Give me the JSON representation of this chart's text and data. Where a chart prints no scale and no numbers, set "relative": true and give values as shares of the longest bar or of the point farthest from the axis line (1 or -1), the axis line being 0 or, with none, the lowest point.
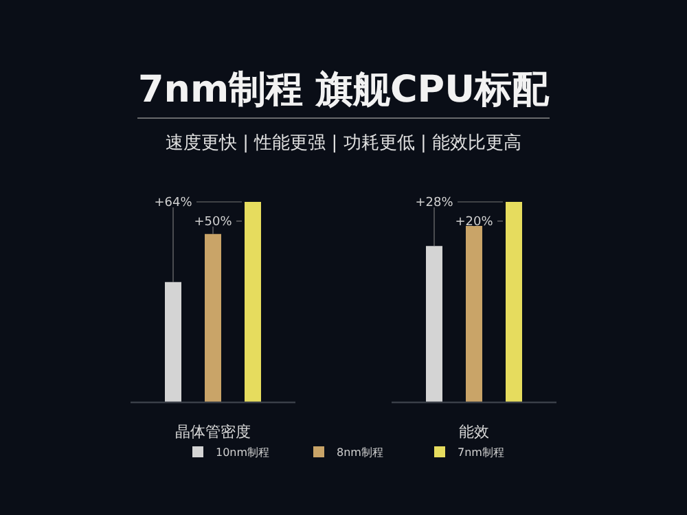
{
  "chart_data": {
    "type": "bar",
    "title": "7nm制程  旗舰CPU标配",
    "subtitle": "速度更快 | 性能更强 | 功耗更低 | 能效比更高",
    "relative": true,
    "categories": [
      "晶体管密度",
      "能效"
    ],
    "legend": "bottom",
    "series": [
      {
        "name": "10nm制程",
        "color": "#d4d4d4",
        "values": [
          0.6,
          0.78
        ]
      },
      {
        "name": "8nm制程",
        "color": "#c9a468",
        "values": [
          0.84,
          0.88
        ]
      },
      {
        "name": "7nm制程",
        "color": "#e6dc5e",
        "values": [
          1,
          1
        ]
      }
    ],
    "annotations": [
      "+64%",
      "+50%",
      "+28%",
      "+20%"
    ]
  }
}
